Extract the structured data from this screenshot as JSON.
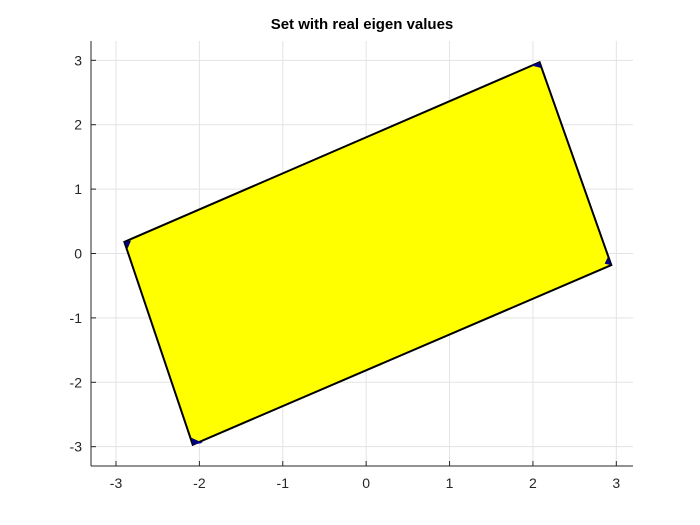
{
  "chart_data": {
    "type": "area",
    "title": "Set with real eigen values",
    "xlabel": "",
    "ylabel": "",
    "xlim": [
      -3.3,
      3.2
    ],
    "ylim": [
      -3.3,
      3.3
    ],
    "xticks": [
      -3,
      -2,
      -1,
      0,
      1,
      2,
      3
    ],
    "yticks": [
      -3,
      -2,
      -1,
      0,
      1,
      2,
      3
    ],
    "grid": true,
    "colors": {
      "fill": "#ffff00",
      "edge": "#000000",
      "corner_fill": "#000080",
      "grid": "#e3e3e3",
      "axis": "#262626"
    },
    "series": [
      {
        "polygon": [
          [
            -2.9,
            0.18
          ],
          [
            2.08,
            2.97
          ],
          [
            2.94,
            -0.18
          ],
          [
            -2.08,
            -2.97
          ]
        ]
      }
    ],
    "corner_markers": [
      [
        [
          -2.9,
          0.18
        ],
        [
          -2.82,
          0.2
        ],
        [
          -2.86,
          0.08
        ]
      ],
      [
        [
          2.08,
          2.97
        ],
        [
          1.98,
          2.92
        ],
        [
          2.1,
          2.88
        ]
      ],
      [
        [
          2.94,
          -0.18
        ],
        [
          2.86,
          -0.16
        ],
        [
          2.9,
          -0.05
        ]
      ],
      [
        [
          -2.08,
          -2.97
        ],
        [
          -1.96,
          -2.94
        ],
        [
          -2.1,
          -2.86
        ]
      ]
    ]
  }
}
